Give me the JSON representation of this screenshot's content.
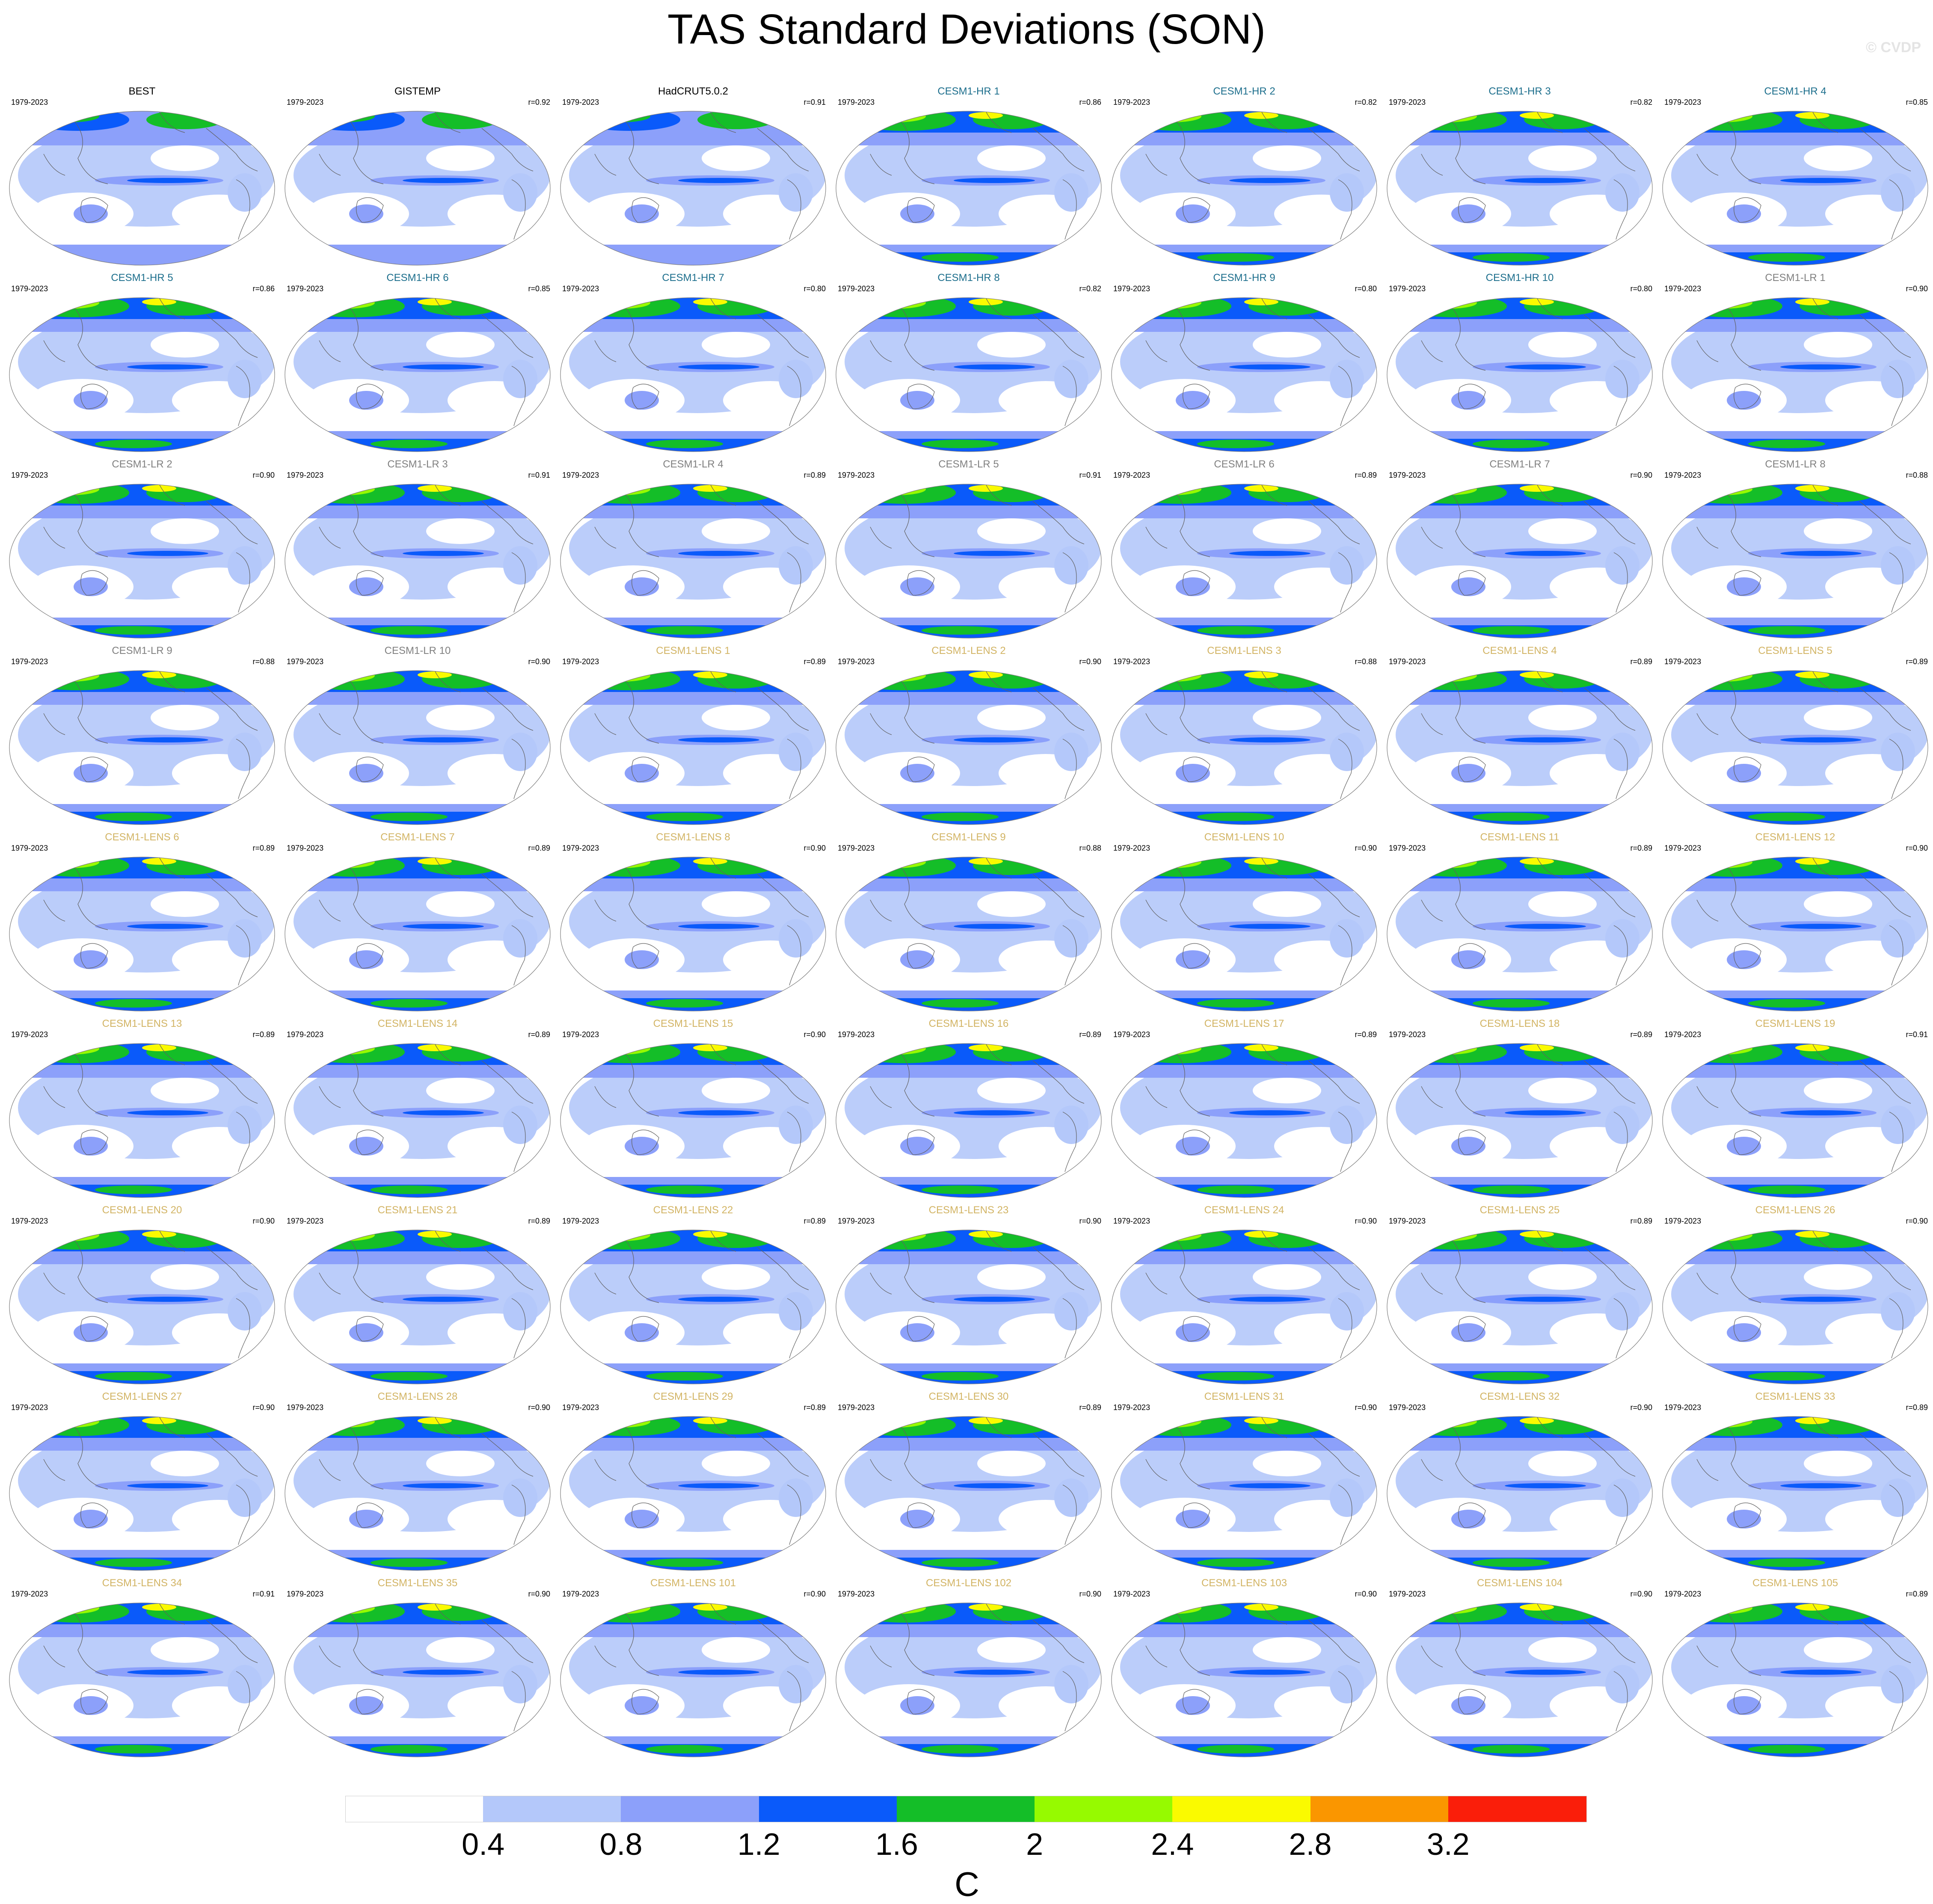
{
  "title": "TAS Standard Deviations (SON)",
  "credit": "© CVDP",
  "colors": {
    "levels": [
      "#ffffff",
      "#b4c8fa",
      "#8ca0fa",
      "#0a5afa",
      "#14be28",
      "#96fa00",
      "#fafa00",
      "#fa9600",
      "#fa1e0a"
    ],
    "observations_title": "#000000",
    "cesm1_hr_title": "#1c6e8c",
    "cesm1_lr_title": "#808080",
    "cesm1_lens_title": "#d2b464",
    "coastline": "#606060"
  },
  "panels": [
    {
      "title": "BEST",
      "years": "1979-2023",
      "r": "",
      "group": "obs"
    },
    {
      "title": "GISTEMP",
      "years": "1979-2023",
      "r": "r=0.92",
      "group": "obs"
    },
    {
      "title": "HadCRUT5.0.2",
      "years": "1979-2023",
      "r": "r=0.91",
      "group": "obs"
    },
    {
      "title": "CESM1-HR 1",
      "years": "1979-2023",
      "r": "r=0.86",
      "group": "hr"
    },
    {
      "title": "CESM1-HR 2",
      "years": "1979-2023",
      "r": "r=0.82",
      "group": "hr"
    },
    {
      "title": "CESM1-HR 3",
      "years": "1979-2023",
      "r": "r=0.82",
      "group": "hr"
    },
    {
      "title": "CESM1-HR 4",
      "years": "1979-2023",
      "r": "r=0.85",
      "group": "hr"
    },
    {
      "title": "CESM1-HR 5",
      "years": "1979-2023",
      "r": "r=0.86",
      "group": "hr"
    },
    {
      "title": "CESM1-HR 6",
      "years": "1979-2023",
      "r": "r=0.85",
      "group": "hr"
    },
    {
      "title": "CESM1-HR 7",
      "years": "1979-2023",
      "r": "r=0.80",
      "group": "hr"
    },
    {
      "title": "CESM1-HR 8",
      "years": "1979-2023",
      "r": "r=0.82",
      "group": "hr"
    },
    {
      "title": "CESM1-HR 9",
      "years": "1979-2023",
      "r": "r=0.80",
      "group": "hr"
    },
    {
      "title": "CESM1-HR 10",
      "years": "1979-2023",
      "r": "r=0.80",
      "group": "hr"
    },
    {
      "title": "CESM1-LR 1",
      "years": "1979-2023",
      "r": "r=0.90",
      "group": "lr"
    },
    {
      "title": "CESM1-LR 2",
      "years": "1979-2023",
      "r": "r=0.90",
      "group": "lr"
    },
    {
      "title": "CESM1-LR 3",
      "years": "1979-2023",
      "r": "r=0.91",
      "group": "lr"
    },
    {
      "title": "CESM1-LR 4",
      "years": "1979-2023",
      "r": "r=0.89",
      "group": "lr"
    },
    {
      "title": "CESM1-LR 5",
      "years": "1979-2023",
      "r": "r=0.91",
      "group": "lr"
    },
    {
      "title": "CESM1-LR 6",
      "years": "1979-2023",
      "r": "r=0.89",
      "group": "lr"
    },
    {
      "title": "CESM1-LR 7",
      "years": "1979-2023",
      "r": "r=0.90",
      "group": "lr"
    },
    {
      "title": "CESM1-LR 8",
      "years": "1979-2023",
      "r": "r=0.88",
      "group": "lr"
    },
    {
      "title": "CESM1-LR 9",
      "years": "1979-2023",
      "r": "r=0.88",
      "group": "lr"
    },
    {
      "title": "CESM1-LR 10",
      "years": "1979-2023",
      "r": "r=0.90",
      "group": "lr"
    },
    {
      "title": "CESM1-LENS 1",
      "years": "1979-2023",
      "r": "r=0.89",
      "group": "lens"
    },
    {
      "title": "CESM1-LENS 2",
      "years": "1979-2023",
      "r": "r=0.90",
      "group": "lens"
    },
    {
      "title": "CESM1-LENS 3",
      "years": "1979-2023",
      "r": "r=0.88",
      "group": "lens"
    },
    {
      "title": "CESM1-LENS 4",
      "years": "1979-2023",
      "r": "r=0.89",
      "group": "lens"
    },
    {
      "title": "CESM1-LENS 5",
      "years": "1979-2023",
      "r": "r=0.89",
      "group": "lens"
    },
    {
      "title": "CESM1-LENS 6",
      "years": "1979-2023",
      "r": "r=0.89",
      "group": "lens"
    },
    {
      "title": "CESM1-LENS 7",
      "years": "1979-2023",
      "r": "r=0.89",
      "group": "lens"
    },
    {
      "title": "CESM1-LENS 8",
      "years": "1979-2023",
      "r": "r=0.90",
      "group": "lens"
    },
    {
      "title": "CESM1-LENS 9",
      "years": "1979-2023",
      "r": "r=0.88",
      "group": "lens"
    },
    {
      "title": "CESM1-LENS 10",
      "years": "1979-2023",
      "r": "r=0.90",
      "group": "lens"
    },
    {
      "title": "CESM1-LENS 11",
      "years": "1979-2023",
      "r": "r=0.89",
      "group": "lens"
    },
    {
      "title": "CESM1-LENS 12",
      "years": "1979-2023",
      "r": "r=0.90",
      "group": "lens"
    },
    {
      "title": "CESM1-LENS 13",
      "years": "1979-2023",
      "r": "r=0.89",
      "group": "lens"
    },
    {
      "title": "CESM1-LENS 14",
      "years": "1979-2023",
      "r": "r=0.89",
      "group": "lens"
    },
    {
      "title": "CESM1-LENS 15",
      "years": "1979-2023",
      "r": "r=0.90",
      "group": "lens"
    },
    {
      "title": "CESM1-LENS 16",
      "years": "1979-2023",
      "r": "r=0.89",
      "group": "lens"
    },
    {
      "title": "CESM1-LENS 17",
      "years": "1979-2023",
      "r": "r=0.89",
      "group": "lens"
    },
    {
      "title": "CESM1-LENS 18",
      "years": "1979-2023",
      "r": "r=0.89",
      "group": "lens"
    },
    {
      "title": "CESM1-LENS 19",
      "years": "1979-2023",
      "r": "r=0.91",
      "group": "lens"
    },
    {
      "title": "CESM1-LENS 20",
      "years": "1979-2023",
      "r": "r=0.90",
      "group": "lens"
    },
    {
      "title": "CESM1-LENS 21",
      "years": "1979-2023",
      "r": "r=0.89",
      "group": "lens"
    },
    {
      "title": "CESM1-LENS 22",
      "years": "1979-2023",
      "r": "r=0.89",
      "group": "lens"
    },
    {
      "title": "CESM1-LENS 23",
      "years": "1979-2023",
      "r": "r=0.90",
      "group": "lens"
    },
    {
      "title": "CESM1-LENS 24",
      "years": "1979-2023",
      "r": "r=0.90",
      "group": "lens"
    },
    {
      "title": "CESM1-LENS 25",
      "years": "1979-2023",
      "r": "r=0.89",
      "group": "lens"
    },
    {
      "title": "CESM1-LENS 26",
      "years": "1979-2023",
      "r": "r=0.90",
      "group": "lens"
    },
    {
      "title": "CESM1-LENS 27",
      "years": "1979-2023",
      "r": "r=0.90",
      "group": "lens"
    },
    {
      "title": "CESM1-LENS 28",
      "years": "1979-2023",
      "r": "r=0.90",
      "group": "lens"
    },
    {
      "title": "CESM1-LENS 29",
      "years": "1979-2023",
      "r": "r=0.89",
      "group": "lens"
    },
    {
      "title": "CESM1-LENS 30",
      "years": "1979-2023",
      "r": "r=0.89",
      "group": "lens"
    },
    {
      "title": "CESM1-LENS 31",
      "years": "1979-2023",
      "r": "r=0.90",
      "group": "lens"
    },
    {
      "title": "CESM1-LENS 32",
      "years": "1979-2023",
      "r": "r=0.90",
      "group": "lens"
    },
    {
      "title": "CESM1-LENS 33",
      "years": "1979-2023",
      "r": "r=0.89",
      "group": "lens"
    },
    {
      "title": "CESM1-LENS 34",
      "years": "1979-2023",
      "r": "r=0.91",
      "group": "lens"
    },
    {
      "title": "CESM1-LENS 35",
      "years": "1979-2023",
      "r": "r=0.90",
      "group": "lens"
    },
    {
      "title": "CESM1-LENS 101",
      "years": "1979-2023",
      "r": "r=0.90",
      "group": "lens"
    },
    {
      "title": "CESM1-LENS 102",
      "years": "1979-2023",
      "r": "r=0.90",
      "group": "lens"
    },
    {
      "title": "CESM1-LENS 103",
      "years": "1979-2023",
      "r": "r=0.90",
      "group": "lens"
    },
    {
      "title": "CESM1-LENS 104",
      "years": "1979-2023",
      "r": "r=0.90",
      "group": "lens"
    },
    {
      "title": "CESM1-LENS 105",
      "years": "1979-2023",
      "r": "r=0.89",
      "group": "lens"
    }
  ],
  "colorbar": {
    "ticks": [
      "0.4",
      "0.8",
      "1.2",
      "1.6",
      "2",
      "2.4",
      "2.8",
      "3.2"
    ],
    "unit": "C"
  }
}
